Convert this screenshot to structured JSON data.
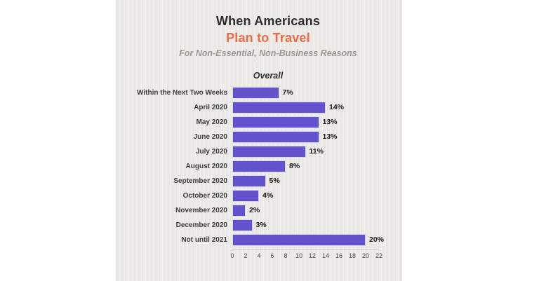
{
  "chart_data": {
    "type": "bar",
    "orientation": "horizontal",
    "title_line1": "When Americans",
    "title_line2": "Plan to Travel",
    "subtitle": "For Non-Essential, Non-Business Reasons",
    "group_label": "Overall",
    "categories": [
      "Within the Next Two Weeks",
      "April 2020",
      "May 2020",
      "June 2020",
      "July 2020",
      "August 2020",
      "September 2020",
      "October 2020",
      "November 2020",
      "December 2020",
      "Not until 2021"
    ],
    "values": [
      7,
      14,
      13,
      13,
      11,
      8,
      5,
      4,
      2,
      3,
      20
    ],
    "value_labels": [
      "7%",
      "14%",
      "13%",
      "13%",
      "11%",
      "8%",
      "5%",
      "4%",
      "2%",
      "3%",
      "20%"
    ],
    "xlabel": "",
    "ylabel": "",
    "xlim": [
      0,
      22
    ],
    "x_ticks": [
      0,
      2,
      4,
      6,
      8,
      10,
      12,
      14,
      16,
      18,
      20,
      22
    ],
    "grid": false,
    "legend": false,
    "bar_color": "#6253cd",
    "title_color": "#2d2d2d",
    "accent_color": "#ee6a45",
    "card_background": "#ebeae7",
    "page_background": "#ffffff"
  }
}
